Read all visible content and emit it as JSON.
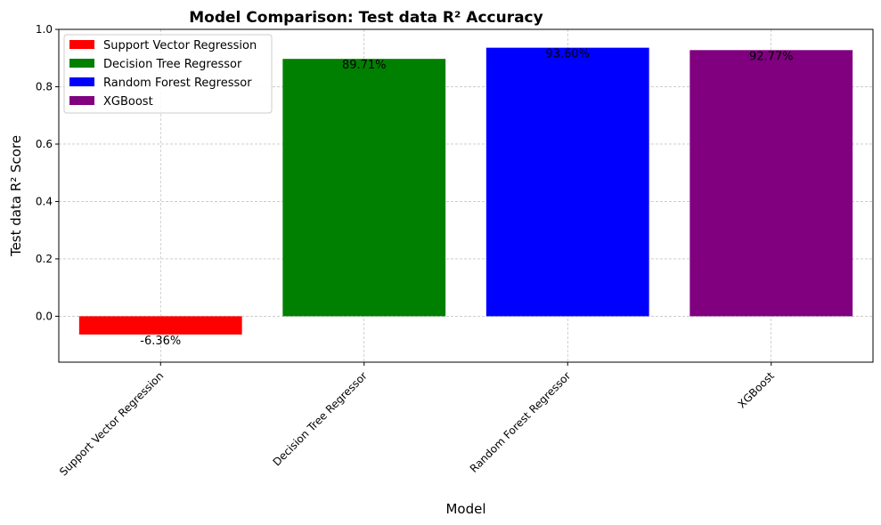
{
  "chart_data": {
    "type": "bar",
    "title": "Model Comparison: Test data R² Accuracy",
    "xlabel": "Model",
    "ylabel": "Test data R² Score",
    "categories": [
      "Support Vector Regression",
      "Decision Tree Regressor",
      "Random Forest Regressor",
      "XGBoost"
    ],
    "values": [
      -0.0636,
      0.8971,
      0.936,
      0.9277
    ],
    "data_labels": [
      "-6.36%",
      "89.71%",
      "93.60%",
      "92.77%"
    ],
    "colors": [
      "#ff0000",
      "#008000",
      "#0000ff",
      "#800080"
    ],
    "ylim": [
      -0.16,
      1.0
    ],
    "yticks": [
      0.0,
      0.2,
      0.4,
      0.6,
      0.8,
      1.0
    ],
    "ytick_labels": [
      "0.0",
      "0.2",
      "0.4",
      "0.6",
      "0.8",
      "1.0"
    ],
    "grid": true,
    "legend": {
      "placement": "top-left",
      "entries": [
        "Support Vector Regression",
        "Decision Tree Regressor",
        "Random Forest Regressor",
        "XGBoost"
      ]
    }
  }
}
